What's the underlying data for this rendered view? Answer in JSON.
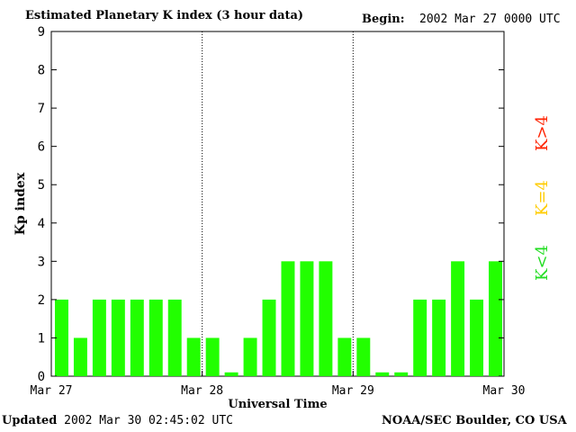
{
  "header": {
    "title": "Estimated Planetary K index (3 hour data)",
    "begin_label": "Begin:",
    "begin_value": "2002 Mar 27 0000 UTC"
  },
  "footer": {
    "updated_label": "Updated",
    "updated_value": "2002 Mar 30 02:45:02 UTC",
    "source": "NOAA/SEC Boulder, CO USA"
  },
  "legend": {
    "low": {
      "label": "K<4",
      "color": "#22dd22"
    },
    "mid": {
      "label": "K=4",
      "color": "#ffcc00"
    },
    "high": {
      "label": "K>4",
      "color": "#ff2200"
    }
  },
  "chart_data": {
    "type": "bar",
    "xlabel": "Universal Time",
    "ylabel": "Kp index",
    "ylim": [
      0,
      9
    ],
    "yticks": [
      0,
      1,
      2,
      3,
      4,
      5,
      6,
      7,
      8,
      9
    ],
    "xticks": [
      "Mar 27",
      "Mar 28",
      "Mar 29",
      "Mar 30"
    ],
    "bar_color": "#22ff00",
    "values": [
      2,
      1,
      2,
      2,
      2,
      2,
      2,
      1,
      1,
      0.1,
      1,
      2,
      3,
      3,
      3,
      1,
      1,
      0.1,
      0.1,
      2,
      2,
      3,
      2,
      3
    ],
    "day_separators": "dotted"
  }
}
